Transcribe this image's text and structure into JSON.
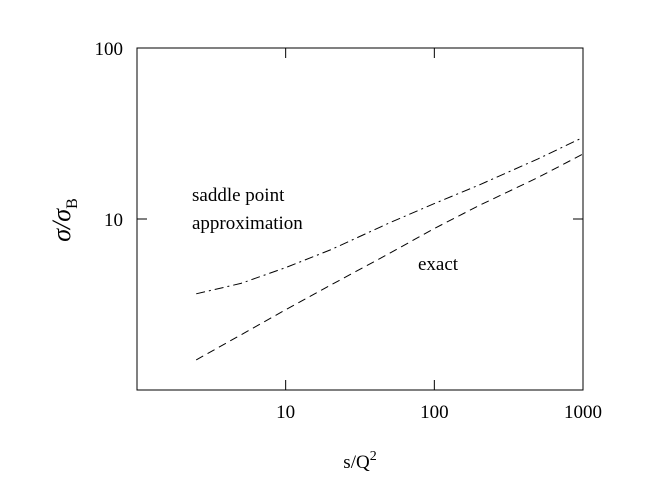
{
  "chart_data": {
    "type": "line",
    "xlabel": "s/Q",
    "xlabel_sup": "2",
    "ylabel": "σ/σ",
    "ylabel_sub": "B",
    "xscale": "log",
    "yscale": "log",
    "xlim": [
      1,
      1000
    ],
    "ylim": [
      1,
      100
    ],
    "xticks": [
      10,
      100,
      1000
    ],
    "yticks": [
      10,
      100
    ],
    "annotations": [
      "saddle point",
      "approximation",
      "exact"
    ],
    "series": [
      {
        "color": "#000000",
        "style": "dashdot",
        "x": [
          2.5,
          5,
          10,
          20,
          50,
          100,
          200,
          500,
          1000
        ],
        "values": [
          3.65,
          4.2,
          5.2,
          6.6,
          9.5,
          12.3,
          15.8,
          22.5,
          30
        ]
      },
      {
        "color": "#000000",
        "style": "dashed",
        "x": [
          2.5,
          5,
          10,
          20,
          50,
          100,
          200,
          500,
          1000
        ],
        "values": [
          1.5,
          2.1,
          2.95,
          4.1,
          6.3,
          8.8,
          12,
          17.5,
          24
        ]
      }
    ]
  }
}
